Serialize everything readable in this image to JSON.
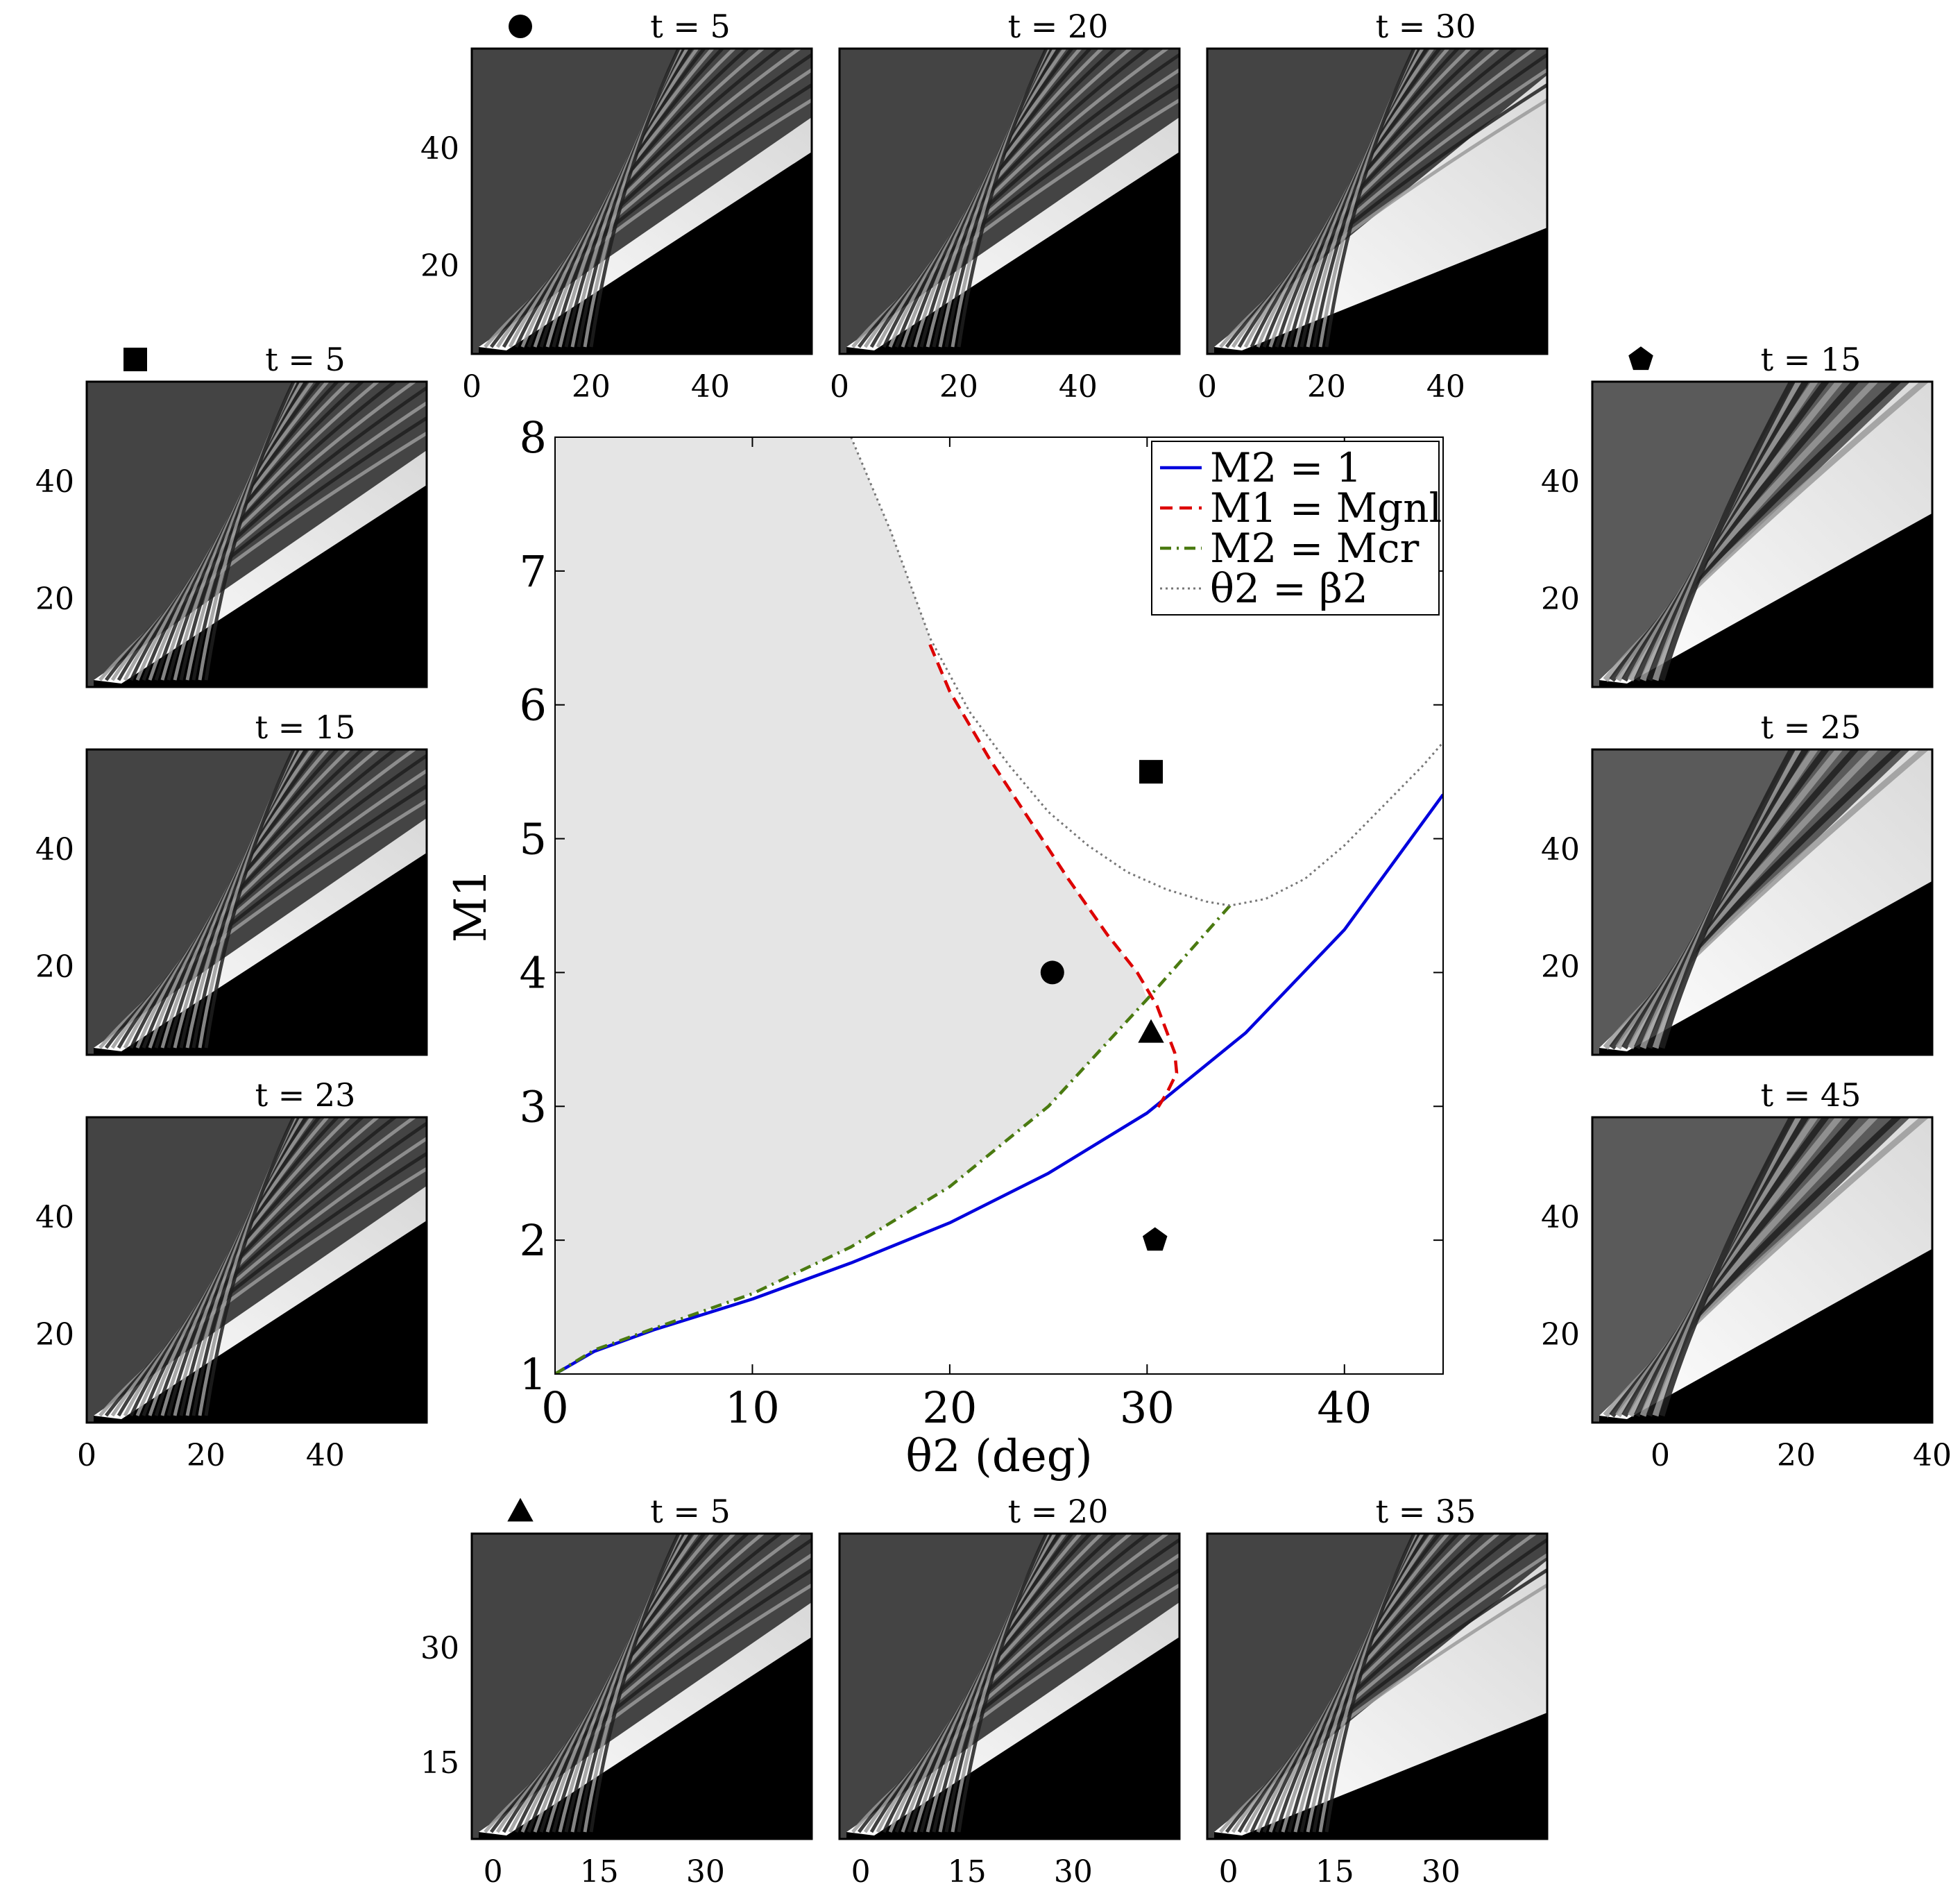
{
  "chart_data": [
    {
      "type": "line",
      "xlabel": "θ2 (deg)",
      "ylabel": "M1",
      "xlim": [
        0,
        45
      ],
      "ylim": [
        1,
        8
      ],
      "xticks": [
        "0",
        "10",
        "20",
        "30",
        "40"
      ],
      "yticks": [
        "1",
        "2",
        "3",
        "4",
        "5",
        "6",
        "7",
        "8"
      ],
      "grid": false,
      "legend_position": "top-right",
      "shaded_region": "light gray region left of the M1 = Mgnl / M2 = Mcr / θ2 = β2 boundaries",
      "series": [
        {
          "name": "M2 = 1",
          "color": "#0000dd",
          "style": "solid",
          "x": [
            0,
            2,
            5,
            10,
            15,
            20,
            25,
            30,
            35,
            40,
            45
          ],
          "y": [
            1.0,
            1.17,
            1.33,
            1.56,
            1.83,
            2.13,
            2.5,
            2.95,
            3.55,
            4.32,
            5.33
          ]
        },
        {
          "name": "M1 = Mgnl",
          "color": "#dd0000",
          "style": "dashed",
          "x": [
            19,
            20,
            22,
            24,
            26,
            28,
            29.5,
            30.5,
            31.4,
            31.5,
            31,
            30.5
          ],
          "y": [
            6.45,
            6.1,
            5.6,
            5.15,
            4.7,
            4.28,
            4.0,
            3.75,
            3.4,
            3.25,
            3.1,
            2.98
          ]
        },
        {
          "name": "M2 = Mcr",
          "color": "#4a7a10",
          "style": "dash-dot",
          "x": [
            0,
            2,
            5,
            10,
            15,
            20,
            25,
            30,
            33,
            34.2
          ],
          "y": [
            1.0,
            1.18,
            1.34,
            1.6,
            1.95,
            2.4,
            3.0,
            3.8,
            4.3,
            4.5
          ]
        },
        {
          "name": "θ2 = β2",
          "color": "#777777",
          "style": "dotted",
          "x": [
            15,
            17,
            19,
            21,
            23,
            25,
            27,
            29,
            31,
            33,
            34.2,
            36,
            38,
            40,
            42,
            44,
            45
          ],
          "y": [
            8.0,
            7.3,
            6.5,
            5.95,
            5.55,
            5.2,
            4.95,
            4.75,
            4.62,
            4.53,
            4.5,
            4.55,
            4.7,
            4.95,
            5.25,
            5.55,
            5.72
          ]
        }
      ],
      "markers": [
        {
          "symbol": "square",
          "x": 30.2,
          "y": 5.5
        },
        {
          "symbol": "circle",
          "x": 25.2,
          "y": 4.0
        },
        {
          "symbol": "triangle",
          "x": 30.2,
          "y": 3.55
        },
        {
          "symbol": "pentagon",
          "x": 30.4,
          "y": 2.0
        }
      ]
    },
    {
      "type": "heatmap",
      "group": "circle",
      "marker": "circle",
      "title": "t = 5",
      "xticks": [
        "0",
        "20",
        "40"
      ],
      "yticks": [
        "20",
        "40"
      ]
    },
    {
      "type": "heatmap",
      "group": "circle",
      "title": "t = 20",
      "xticks": [
        "0",
        "20",
        "40"
      ],
      "yticks": []
    },
    {
      "type": "heatmap",
      "group": "circle",
      "title": "t = 30",
      "xticks": [
        "0",
        "20",
        "40"
      ],
      "yticks": []
    },
    {
      "type": "heatmap",
      "group": "square",
      "marker": "square",
      "title": "t = 5",
      "xticks": [],
      "yticks": [
        "20",
        "40"
      ]
    },
    {
      "type": "heatmap",
      "group": "square",
      "title": "t = 15",
      "xticks": [],
      "yticks": [
        "20",
        "40"
      ]
    },
    {
      "type": "heatmap",
      "group": "square",
      "title": "t = 23",
      "xticks": [
        "0",
        "20",
        "40"
      ],
      "yticks": [
        "20",
        "40"
      ]
    },
    {
      "type": "heatmap",
      "group": "pentagon",
      "marker": "pentagon",
      "title": "t = 15",
      "xticks": [],
      "yticks": [
        "20",
        "40"
      ]
    },
    {
      "type": "heatmap",
      "group": "pentagon",
      "title": "t = 25",
      "xticks": [],
      "yticks": [
        "20",
        "40"
      ]
    },
    {
      "type": "heatmap",
      "group": "pentagon",
      "title": "t = 45",
      "xticks": [
        "0",
        "20",
        "40"
      ],
      "yticks": [
        "20",
        "40"
      ]
    },
    {
      "type": "heatmap",
      "group": "triangle",
      "marker": "triangle",
      "title": "t = 5",
      "xticks": [
        "0",
        "15",
        "30"
      ],
      "yticks": [
        "15",
        "30"
      ]
    },
    {
      "type": "heatmap",
      "group": "triangle",
      "title": "t = 20",
      "xticks": [
        "0",
        "15",
        "30"
      ],
      "yticks": []
    },
    {
      "type": "heatmap",
      "group": "triangle",
      "title": "t = 35",
      "xticks": [
        "0",
        "15",
        "30"
      ],
      "yticks": []
    }
  ]
}
